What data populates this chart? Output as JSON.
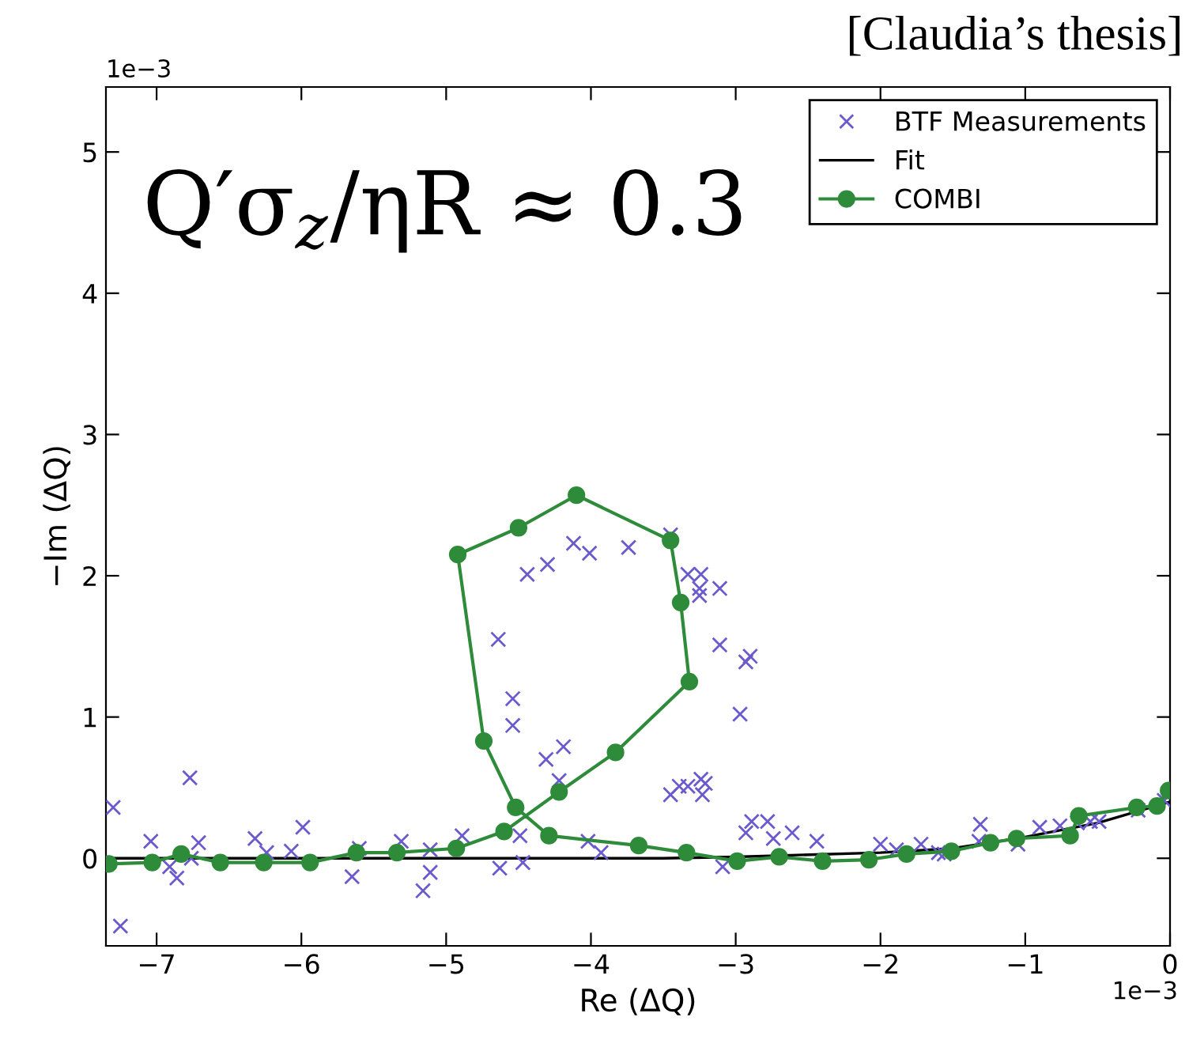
{
  "chart_data": {
    "type": "line",
    "xlabel": "Re (ΔQ)",
    "ylabel": "−Im (ΔQ)",
    "annotations": [
      "[Claudia’s thesis]",
      "Q′σ$_{z}$/ηR ≈ 0.3",
      "1e−3",
      "1e−3"
    ],
    "xlim": [
      -7.35,
      0
    ],
    "ylim": [
      -0.62,
      5.46
    ],
    "xticks": [
      {
        "value": -7,
        "label": "−7"
      },
      {
        "value": -6,
        "label": "−6"
      },
      {
        "value": -5,
        "label": "−5"
      },
      {
        "value": -4,
        "label": "−4"
      },
      {
        "value": -3,
        "label": "−3"
      },
      {
        "value": -2,
        "label": "−2"
      },
      {
        "value": -1,
        "label": "−1"
      },
      0
    ],
    "yticks": [
      0,
      1,
      2,
      3,
      4,
      5
    ],
    "grid": false,
    "legend": "top right",
    "series": [
      {
        "name": "BTF Measurements",
        "type": "scatter",
        "marker": "cross",
        "color": "#6a5acd",
        "x": [
          -7.3,
          -7.25,
          -7.04,
          -6.91,
          -6.86,
          -6.77,
          -6.71,
          -6.76,
          -6.32,
          -6.24,
          -6.07,
          -5.99,
          -5.65,
          -5.6,
          -5.31,
          -5.16,
          -5.11,
          -5.11,
          -4.89,
          -4.63,
          -4.47,
          -4.49,
          -4.64,
          -4.54,
          -4.54,
          -4.44,
          -4.3,
          -4.12,
          -4.01,
          -3.74,
          -4.31,
          -4.19,
          -4.22,
          -4.02,
          -3.93,
          -3.45,
          -3.33,
          -3.24,
          -3.25,
          -3.25,
          -3.11,
          -3.11,
          -2.9,
          -2.93,
          -2.97,
          -3.45,
          -3.39,
          -3.33,
          -3.24,
          -3.23,
          -3.21,
          -3.09,
          -2.93,
          -2.89,
          -2.78,
          -2.74,
          -2.61,
          -2.44,
          -2.0,
          -1.89,
          -1.72,
          -1.6,
          -1.56,
          -1.31,
          -1.32,
          -1.05,
          -0.9,
          -0.76,
          -0.64,
          -0.55,
          -0.49,
          -0.22,
          -0.04
        ],
        "values": [
          0.36,
          -0.48,
          0.12,
          -0.06,
          -0.14,
          0.57,
          0.11,
          0.0,
          0.14,
          0.04,
          0.05,
          0.22,
          -0.13,
          0.07,
          0.12,
          -0.23,
          -0.1,
          0.06,
          0.16,
          -0.07,
          -0.03,
          0.16,
          1.55,
          1.13,
          0.94,
          2.01,
          2.08,
          2.23,
          2.16,
          2.2,
          0.7,
          0.79,
          0.55,
          0.12,
          0.04,
          2.29,
          2.01,
          2.01,
          1.91,
          1.86,
          1.91,
          1.51,
          1.43,
          1.39,
          1.02,
          0.45,
          0.51,
          0.51,
          0.56,
          0.45,
          0.53,
          -0.06,
          0.18,
          0.26,
          0.26,
          0.14,
          0.18,
          0.12,
          0.1,
          0.06,
          0.1,
          0.04,
          0.03,
          0.24,
          0.12,
          0.1,
          0.22,
          0.23,
          0.25,
          0.26,
          0.26,
          0.34,
          0.41
        ]
      },
      {
        "name": "Fit",
        "marker": "none",
        "color": "#000000",
        "x": [
          -7.35,
          -3.5,
          -3.0,
          -2.0,
          -1.5,
          -1.0,
          -0.5,
          0.0
        ],
        "values": [
          0.0,
          0.0,
          0.01,
          0.04,
          0.07,
          0.15,
          0.25,
          0.4
        ]
      },
      {
        "name": "COMBI",
        "marker": "circle",
        "color": "#2e8b3a",
        "x": [
          -7.33,
          -7.03,
          -6.83,
          -6.56,
          -6.26,
          -5.94,
          -5.62,
          -5.34,
          -4.93,
          -4.6,
          -4.22,
          -3.83,
          -3.32,
          -3.38,
          -3.45,
          -4.1,
          -4.5,
          -4.92,
          -4.74,
          -4.52,
          -4.29,
          -3.67,
          -3.34,
          -2.99,
          -2.7,
          -2.4,
          -2.08,
          -1.82,
          -1.51,
          -1.24,
          -1.06,
          -0.69,
          -0.63,
          -0.23,
          -0.09,
          -0.01
        ],
        "values": [
          -0.04,
          -0.03,
          0.03,
          -0.03,
          -0.03,
          -0.03,
          0.04,
          0.04,
          0.07,
          0.19,
          0.47,
          0.75,
          1.25,
          1.81,
          2.25,
          2.57,
          2.34,
          2.15,
          0.83,
          0.36,
          0.16,
          0.09,
          0.04,
          -0.02,
          0.01,
          -0.02,
          -0.01,
          0.03,
          0.05,
          0.11,
          0.14,
          0.16,
          0.3,
          0.36,
          0.37,
          0.48
        ]
      }
    ]
  }
}
